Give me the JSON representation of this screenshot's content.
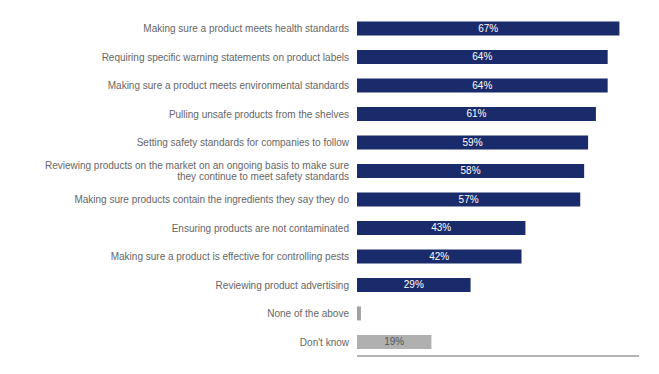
{
  "chart_data": {
    "type": "bar",
    "orientation": "horizontal",
    "categories": [
      "Don't know",
      "None of the above",
      "Reviewing product advertising",
      "Making sure a product is effective for controlling pests",
      "Ensuring products are not contaminated",
      "Making sure products contain the ingredients they say they do",
      "Reviewing products on the market on an ongoing basis to make sure\nthey continue to meet safety standards",
      "Setting safety standards for companies to follow",
      "Pulling unsafe products from the shelves",
      "Making sure a product meets environmental standards",
      "Requiring specific warning statements on product labels",
      "Making sure a product meets health standards"
    ],
    "values": [
      19,
      1,
      29,
      42,
      43,
      57,
      58,
      59,
      61,
      64,
      64,
      67
    ],
    "value_labels": [
      "19%",
      null,
      "29%",
      "42%",
      "43%",
      "57%",
      "58%",
      "59%",
      "61%",
      "64%",
      "64%",
      "67%"
    ],
    "data_labels": true,
    "colors": [
      "#b0b0b0",
      "#a0a0a0",
      "#1a2b6b",
      "#1a2b6b",
      "#1a2b6b",
      "#1a2b6b",
      "#1a2b6b",
      "#1a2b6b",
      "#1a2b6b",
      "#1a2b6b",
      "#1a2b6b",
      "#1a2b6b"
    ],
    "xlim": [
      0,
      72
    ],
    "tick_labels": "y",
    "grid": false
  }
}
